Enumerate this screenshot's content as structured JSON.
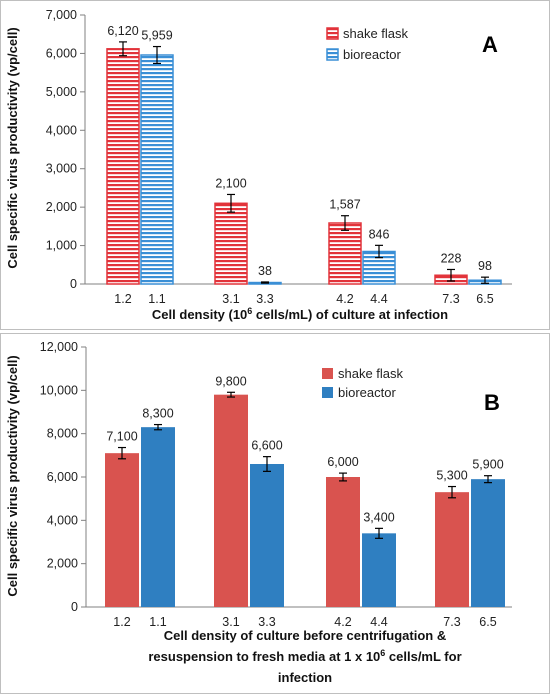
{
  "chart_data": [
    {
      "type": "bar",
      "panel_label": "A",
      "style": "striped",
      "ylabel": "Cell specific virus productivity (vp/cell)",
      "xlabel_parts": [
        "Cell density (10",
        "6",
        " cells/mL) of culture at infection"
      ],
      "ylim": [
        0,
        7000
      ],
      "yticks": [
        0,
        1000,
        2000,
        3000,
        4000,
        5000,
        6000,
        7000
      ],
      "ytick_labels": [
        "0",
        "1,000",
        "2,000",
        "3,000",
        "4,000",
        "5,000",
        "6,000",
        "7,000"
      ],
      "groups": [
        {
          "labels": [
            "1.2",
            "1.1"
          ],
          "values": [
            6120,
            5959
          ],
          "value_labels": [
            "6,120",
            "5,959"
          ],
          "errors": [
            180,
            220
          ]
        },
        {
          "labels": [
            "3.1",
            "3.3"
          ],
          "values": [
            2100,
            38
          ],
          "value_labels": [
            "2,100",
            "38"
          ],
          "errors": [
            230,
            15
          ]
        },
        {
          "labels": [
            "4.2",
            "4.4"
          ],
          "values": [
            1587,
            846
          ],
          "value_labels": [
            "1,587",
            "846"
          ],
          "errors": [
            190,
            160
          ]
        },
        {
          "labels": [
            "7.3",
            "6.5"
          ],
          "values": [
            228,
            98
          ],
          "value_labels": [
            "228",
            "98"
          ],
          "errors": [
            150,
            80
          ]
        }
      ],
      "series": [
        {
          "name": "shake flask"
        },
        {
          "name": "bioreactor"
        }
      ],
      "legend_position": "top-right",
      "grid": false
    },
    {
      "type": "bar",
      "panel_label": "B",
      "style": "solid",
      "ylabel": "Cell specific virus productivity (vp/cell)",
      "xlabel_lines": [
        "Cell density of culture before centrifugation &",
        "resuspension to fresh media at 1 x 10^6 cells/mL for",
        "infection"
      ],
      "xlabel_line2_parts": [
        "resuspension to fresh media at 1 x 10",
        "6",
        " cells/mL for"
      ],
      "ylim": [
        0,
        12000
      ],
      "yticks": [
        0,
        2000,
        4000,
        6000,
        8000,
        10000,
        12000
      ],
      "ytick_labels": [
        "0",
        "2,000",
        "4,000",
        "6,000",
        "8,000",
        "10,000",
        "12,000"
      ],
      "groups": [
        {
          "labels": [
            "1.2",
            "1.1"
          ],
          "values": [
            7100,
            8300
          ],
          "value_labels": [
            "7,100",
            "8,300"
          ],
          "errors": [
            260,
            120
          ]
        },
        {
          "labels": [
            "3.1",
            "3.3"
          ],
          "values": [
            9800,
            6600
          ],
          "value_labels": [
            "9,800",
            "6,600"
          ],
          "errors": [
            110,
            340
          ]
        },
        {
          "labels": [
            "4.2",
            "4.4"
          ],
          "values": [
            6000,
            3400
          ],
          "value_labels": [
            "6,000",
            "3,400"
          ],
          "errors": [
            180,
            230
          ]
        },
        {
          "labels": [
            "7.3",
            "6.5"
          ],
          "values": [
            5300,
            5900
          ],
          "value_labels": [
            "5,300",
            "5,900"
          ],
          "errors": [
            260,
            160
          ]
        }
      ],
      "series": [
        {
          "name": "shake flask"
        },
        {
          "name": "bioreactor"
        }
      ],
      "legend_position": "top-right",
      "grid": false
    }
  ],
  "colors": {
    "shake_flask_solid": "#d9534f",
    "bioreactor_solid": "#2f7fc1",
    "shake_flask_stripe": "#e2333a",
    "bioreactor_stripe": "#3a8fd6",
    "frame": "#bfbfbf"
  }
}
